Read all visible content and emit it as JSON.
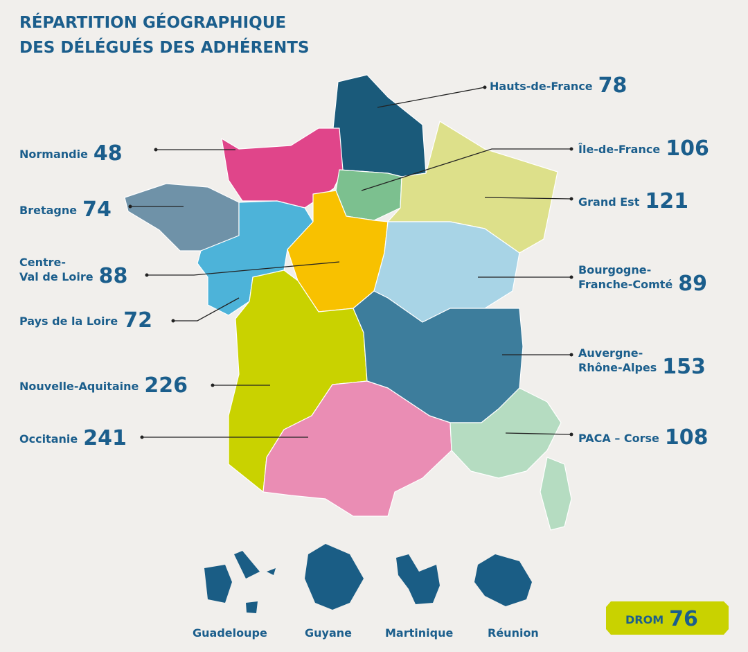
{
  "title": [
    "RÉPARTITION GÉOGRAPHIQUE",
    "DES DÉLÉGUÉS DES ADHÉRENTS"
  ],
  "regions": [
    {
      "name": [
        "Hauts-de-France"
      ],
      "value": 78
    },
    {
      "name": [
        "Normandie"
      ],
      "value": 48
    },
    {
      "name": [
        "Bretagne"
      ],
      "value": 74
    },
    {
      "name": [
        "Centre-",
        "Val de Loire"
      ],
      "value": 88
    },
    {
      "name": [
        "Pays de la Loire"
      ],
      "value": 72
    },
    {
      "name": [
        "Nouvelle-Aquitaine"
      ],
      "value": 226
    },
    {
      "name": [
        "Occitanie"
      ],
      "value": 241
    },
    {
      "name": [
        "Île-de-France"
      ],
      "value": 106
    },
    {
      "name": [
        "Grand Est"
      ],
      "value": 121
    },
    {
      "name": [
        "Bourgogne-",
        "Franche-Comté"
      ],
      "value": 89
    },
    {
      "name": [
        "Auvergne-",
        "Rhône-Alpes"
      ],
      "value": 153
    },
    {
      "name": [
        "PACA – Corse"
      ],
      "value": 108
    }
  ],
  "drom": {
    "territories": [
      "Guadeloupe",
      "Guyane",
      "Martinique",
      "Réunion"
    ],
    "label": "DROM",
    "value": 76
  }
}
